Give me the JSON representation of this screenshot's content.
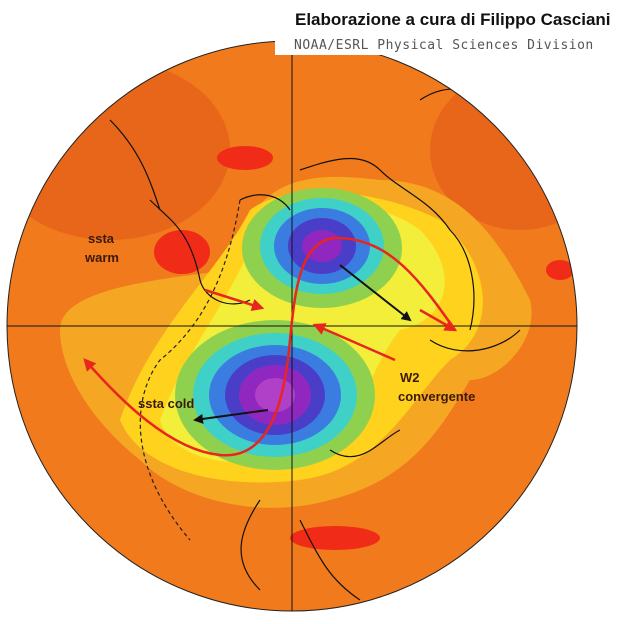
{
  "header": {
    "title": "Elaborazione a cura di Filippo Casciani",
    "source": "NOAA/ESRL Physical Sciences Division"
  },
  "annotations": [
    "ssta",
    "warm",
    "ssta cold",
    "W2",
    "convergente"
  ]
}
